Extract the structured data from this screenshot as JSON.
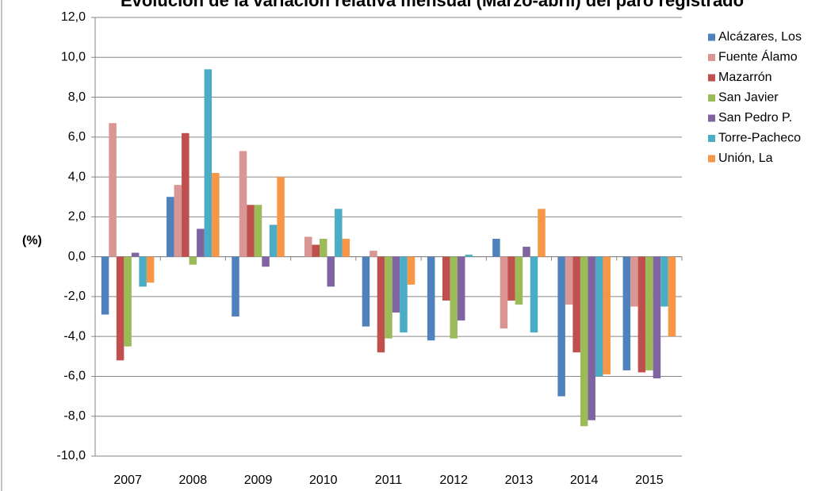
{
  "chart_data": {
    "type": "bar",
    "title": "Evolución de la variación relativa mensual (Marzo-abril) del paro registrado",
    "y_label": "(%)",
    "categories": [
      "2007",
      "2008",
      "2009",
      "2010",
      "2011",
      "2012",
      "2013",
      "2014",
      "2015"
    ],
    "series": [
      {
        "name": "Alcázares, Los",
        "color": "#4f81bd",
        "values": [
          -2.9,
          3.0,
          -3.0,
          0.0,
          -3.5,
          -4.2,
          0.9,
          -7.0,
          -5.7
        ]
      },
      {
        "name": "Fuente Álamo",
        "color": "#d99694",
        "values": [
          6.7,
          3.6,
          5.3,
          1.0,
          0.3,
          0.0,
          -3.6,
          -2.4,
          -2.5
        ]
      },
      {
        "name": "Mazarrón",
        "color": "#c0504d",
        "values": [
          -5.2,
          6.2,
          2.6,
          0.6,
          -4.8,
          -2.2,
          -2.2,
          -4.8,
          -5.8
        ]
      },
      {
        "name": "San Javier",
        "color": "#9bbb59",
        "values": [
          -4.5,
          -0.4,
          2.6,
          0.9,
          -4.1,
          -4.1,
          -2.4,
          -8.5,
          -5.7
        ]
      },
      {
        "name": "San Pedro P.",
        "color": "#8064a2",
        "values": [
          0.2,
          1.4,
          -0.5,
          -1.5,
          -2.8,
          -3.2,
          0.5,
          -8.2,
          -6.1
        ]
      },
      {
        "name": "Torre-Pacheco",
        "color": "#4bacc6",
        "values": [
          -1.5,
          9.4,
          1.6,
          2.4,
          -3.8,
          0.1,
          -3.8,
          -6.0,
          -2.5
        ]
      },
      {
        "name": "Unión, La",
        "color": "#f79646",
        "values": [
          -1.3,
          4.2,
          4.0,
          0.9,
          -1.4,
          0.0,
          2.4,
          -5.9,
          -4.0
        ]
      }
    ],
    "ylim": [
      -10,
      12
    ],
    "yticks": [
      {
        "value": -10,
        "label": "-10,0"
      },
      {
        "value": -8,
        "label": "-8,0"
      },
      {
        "value": -6,
        "label": "-6,0"
      },
      {
        "value": -4,
        "label": "-4,0"
      },
      {
        "value": -2,
        "label": "-2,0"
      },
      {
        "value": 0,
        "label": "0,0"
      },
      {
        "value": 2,
        "label": "2,0"
      },
      {
        "value": 4,
        "label": "4,0"
      },
      {
        "value": 6,
        "label": "6,0"
      },
      {
        "value": 8,
        "label": "8,0"
      },
      {
        "value": 10,
        "label": "10,0"
      },
      {
        "value": 12,
        "label": "12,0"
      }
    ],
    "grid": true,
    "legend": "right"
  }
}
